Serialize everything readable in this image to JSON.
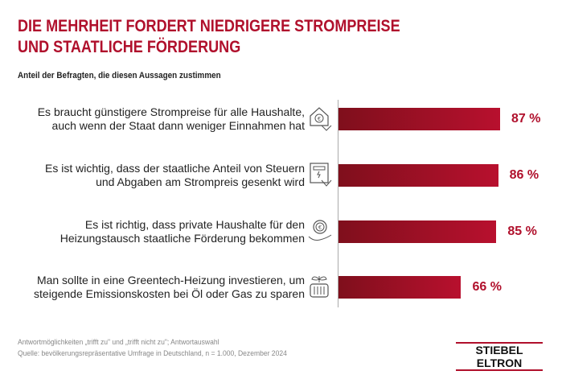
{
  "title_line1": "DIE MEHRHEIT FORDERT NIEDRIGERE STROMPREISE",
  "title_line2": "UND STAATLICHE FÖRDERUNG",
  "subtitle": "Anteil der Befragten, die diesen Aussagen zustimmen",
  "chart_data": {
    "type": "bar",
    "orientation": "horizontal",
    "unit": "%",
    "xlim": [
      0,
      100
    ],
    "grid": false,
    "color": "#b0102c",
    "categories": [
      [
        "Es braucht günstigere Strompreise für alle Haushalte,",
        "auch wenn der Staat dann weniger Einnahmen hat"
      ],
      [
        "Es ist wichtig, dass der staatliche Anteil von Steuern",
        "und Abgaben am Strompreis gesenkt wird"
      ],
      [
        "Es ist richtig, dass private Haushalte für den",
        "Heizungstausch staatliche Förderung bekommen"
      ],
      [
        "Man sollte in eine Greentech-Heizung investieren, um",
        "steigende Emissionskosten bei Öl oder Gas zu sparen"
      ]
    ],
    "values": [
      87,
      86,
      85,
      66
    ],
    "data_labels": [
      "87 %",
      "86 %",
      "85 %",
      "66 %"
    ],
    "icons": [
      "house-euro-down-icon",
      "electricity-meter-down-icon",
      "hand-euro-coin-icon",
      "plant-radiator-icon"
    ]
  },
  "footer": {
    "note": "Antwortmöglichkeiten „trifft zu\" und „trifft nicht zu\"; Antwortauswahl",
    "source": "Quelle: bevölkerungsrepräsentative Umfrage in Deutschland, n = 1.000, Dezember 2024"
  },
  "logo": "STIEBEL ELTRON"
}
